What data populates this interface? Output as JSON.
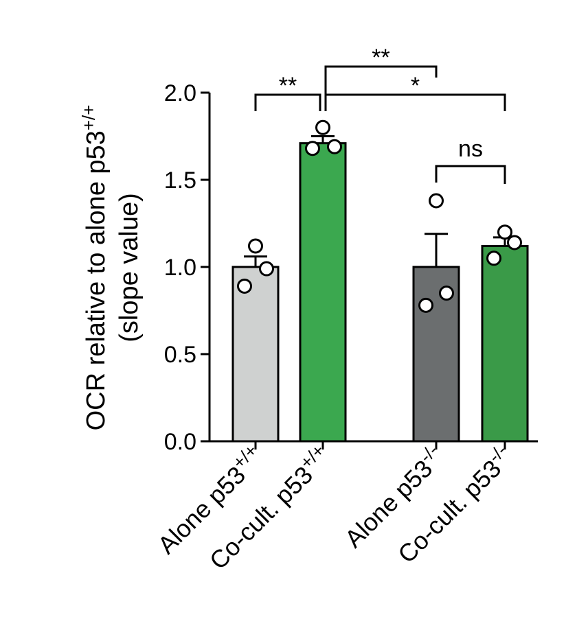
{
  "chart_data": {
    "type": "bar",
    "ylabel_line1": "OCR relative to alone p53",
    "ylabel_line1_sup": "+/+",
    "ylabel_line2": "(slope value)",
    "ylim": [
      0,
      2.0
    ],
    "yticks": [
      "0.0",
      "0.5",
      "1.0",
      "1.5",
      "2.0"
    ],
    "grid": false,
    "categories": [
      {
        "base": "Alone p53",
        "sup": "+/+"
      },
      {
        "base": "Co-cult. p53",
        "sup": "+/+"
      },
      {
        "base": "Alone p53",
        "sup": "-/-"
      },
      {
        "base": "Co-cult. p53",
        "sup": "-/-"
      }
    ],
    "values": [
      1.0,
      1.71,
      1.0,
      1.12
    ],
    "errors": [
      0.06,
      0.04,
      0.19,
      0.05
    ],
    "colors": [
      "#cfd1d0",
      "#3ba84f",
      "#6b6e6f",
      "#3a9a48"
    ],
    "points": [
      [
        1.12,
        0.89,
        0.99
      ],
      [
        1.8,
        1.68,
        1.69
      ],
      [
        1.38,
        0.78,
        0.85
      ],
      [
        1.2,
        1.05,
        1.14
      ]
    ],
    "significance": [
      {
        "from": 0,
        "to": 1,
        "label": "**"
      },
      {
        "from": 1,
        "to": 2,
        "label": "**"
      },
      {
        "from": 1,
        "to": 3,
        "label": "*"
      },
      {
        "from": 2,
        "to": 3,
        "label": "ns"
      }
    ]
  }
}
